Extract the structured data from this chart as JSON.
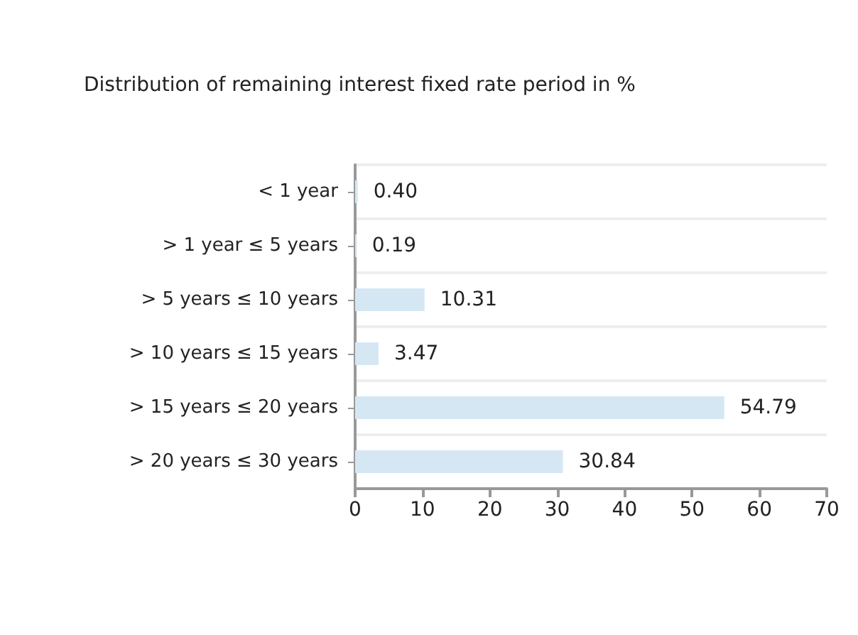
{
  "chart_data": {
    "type": "bar",
    "orientation": "horizontal",
    "title": "Distribution of remaining interest fixed rate period in %",
    "categories": [
      "< 1 year",
      "> 1 year ≤ 5 years",
      "> 5 years ≤ 10 years",
      "> 10 years ≤ 15 years",
      "> 15 years ≤ 20 years",
      "> 20 years ≤ 30 years"
    ],
    "values": [
      0.4,
      0.19,
      10.31,
      3.47,
      54.79,
      30.84
    ],
    "value_labels": [
      "0.40",
      "0.19",
      "10.31",
      "3.47",
      "54.79",
      "30.84"
    ],
    "color": "#d6e7f4",
    "xlim": [
      0,
      70
    ],
    "xticks": [
      0,
      10,
      20,
      30,
      40,
      50,
      60,
      70
    ],
    "grid": "y"
  }
}
